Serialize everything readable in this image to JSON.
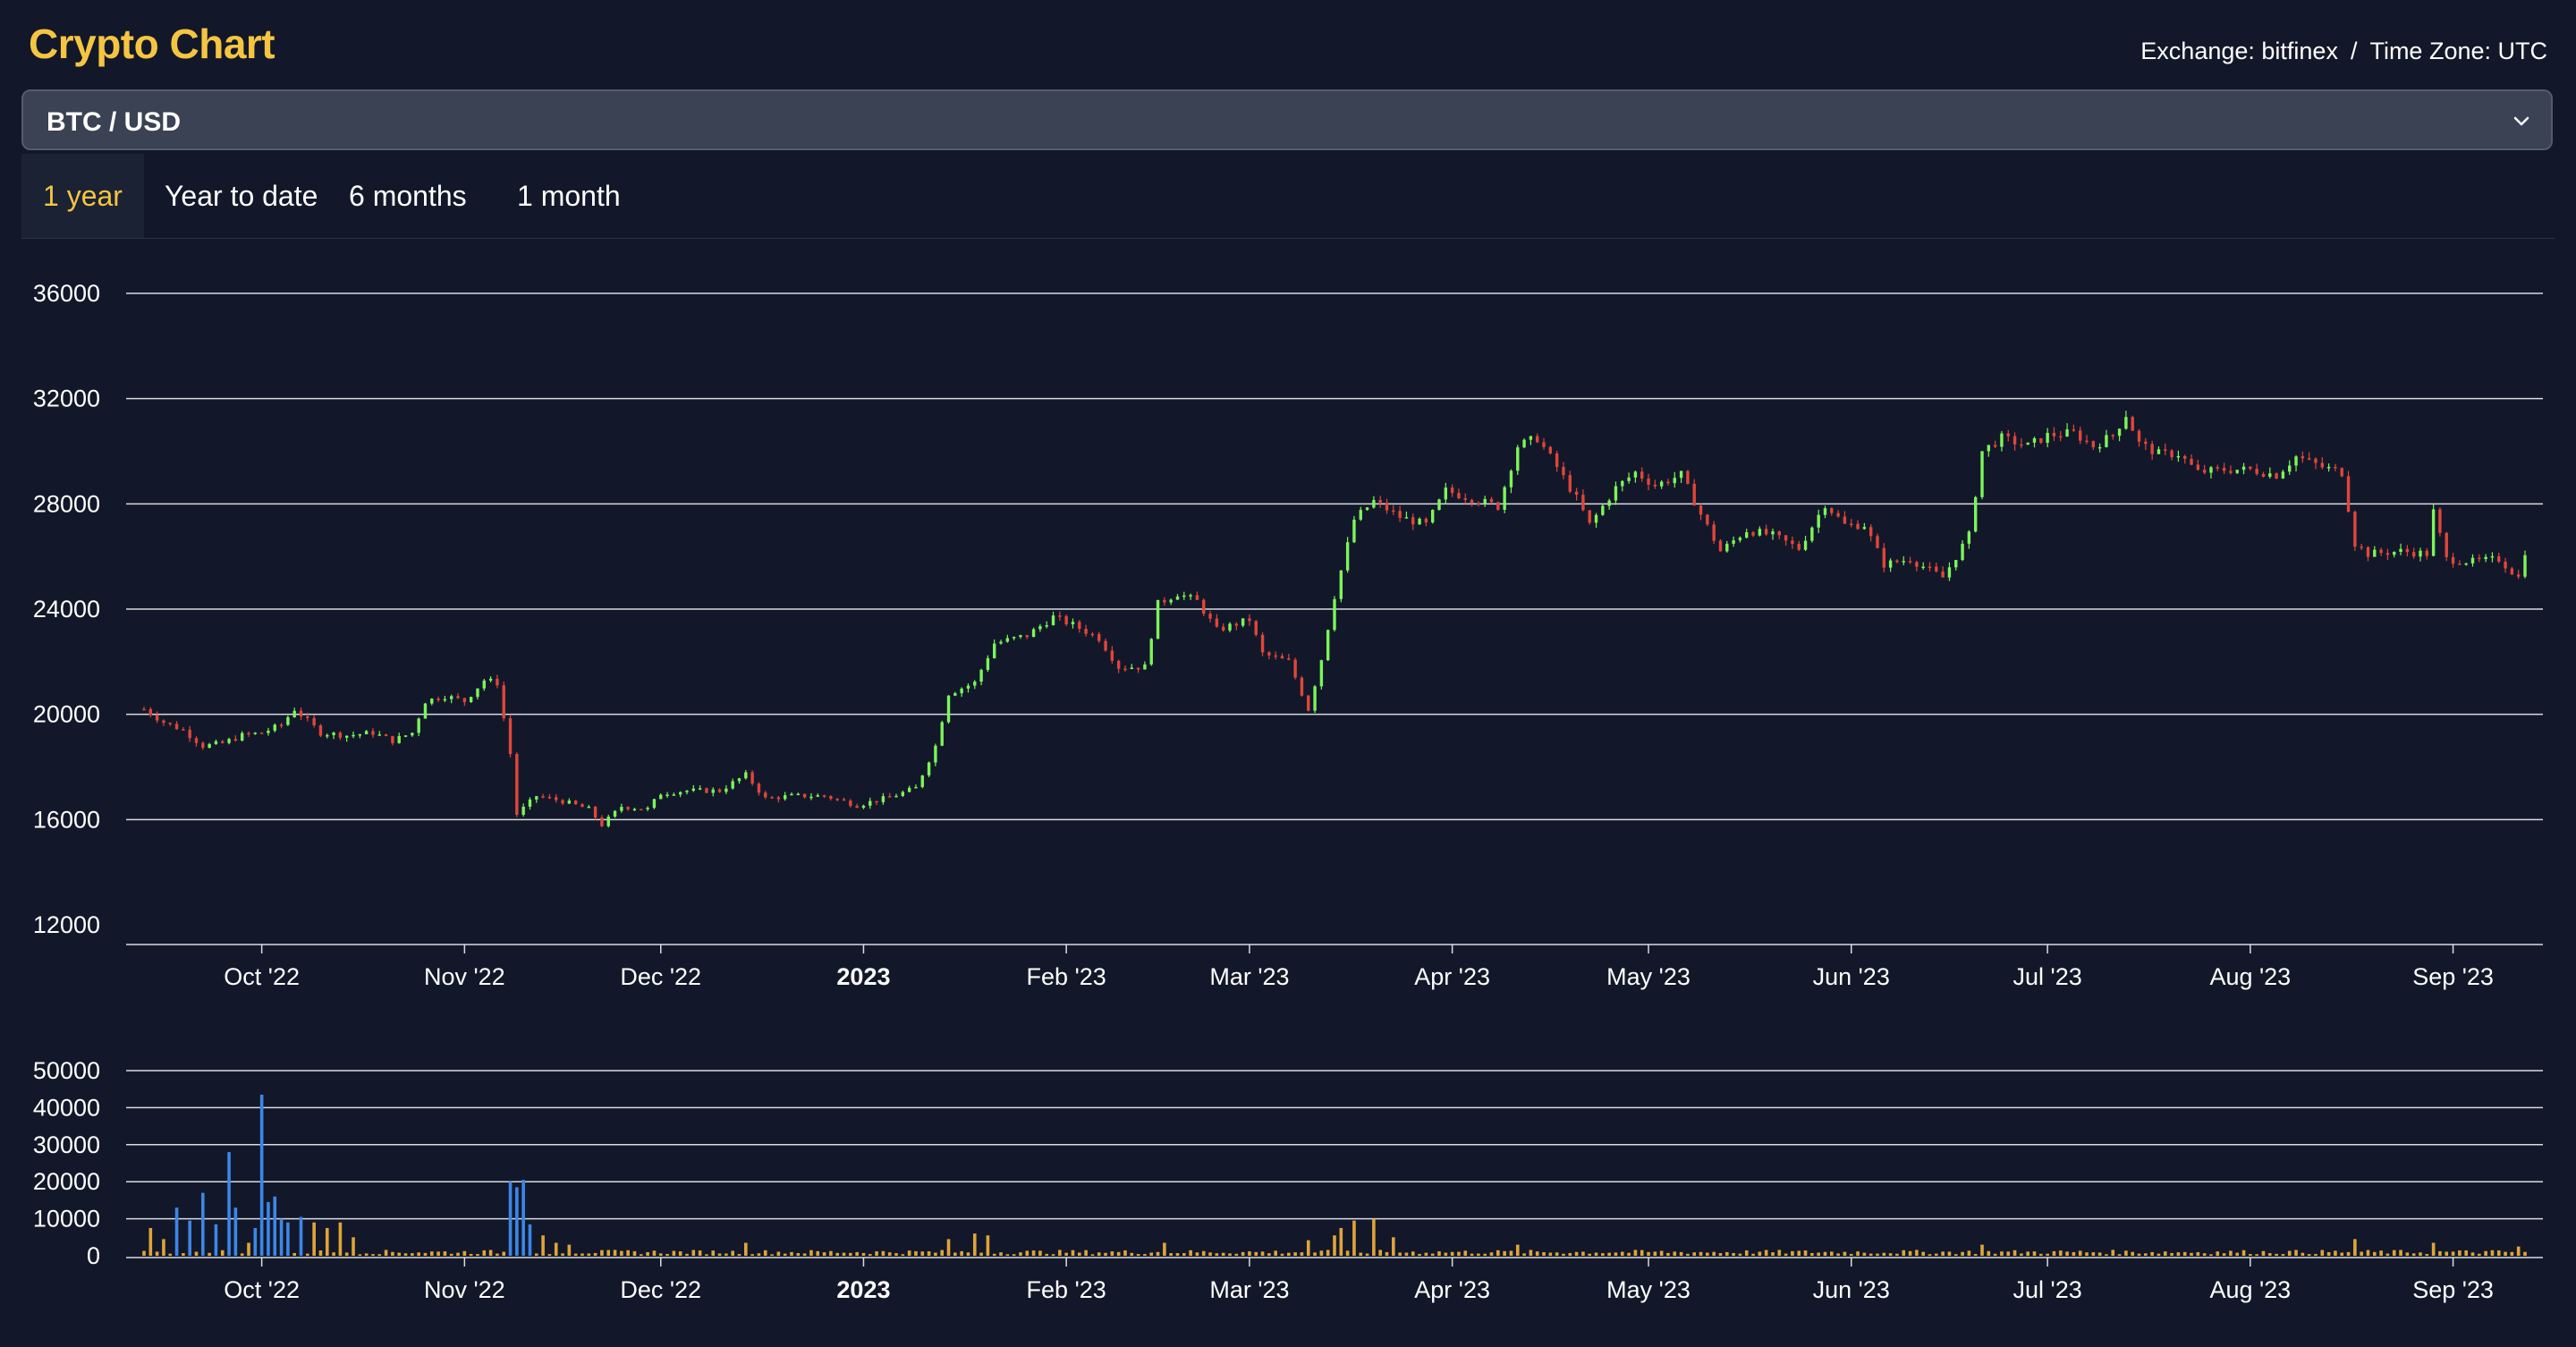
{
  "header": {
    "title": "Crypto Chart",
    "exchange_label": "Exchange: bitfinex",
    "timezone_label": "Time Zone: UTC",
    "separator": "/"
  },
  "pair_select": {
    "selected": "BTC / USD",
    "icon": "chevron-down-icon"
  },
  "tabs": [
    {
      "label": "1 year",
      "active": true
    },
    {
      "label": "Year to date",
      "active": false
    },
    {
      "label": "6 months",
      "active": false
    },
    {
      "label": "1 month",
      "active": false
    }
  ],
  "colors": {
    "background": "#121829",
    "title": "#f5c542",
    "up_candle": "#7cf55a",
    "down_candle": "#e0463a",
    "volume_default": "#e0a43a",
    "volume_highlight": "#3d86e8",
    "gridline": "#d8dbe2"
  },
  "chart_data": [
    {
      "type": "candlestick",
      "ylim": [
        12000,
        36000
      ],
      "y_ticks": [
        36000,
        32000,
        28000,
        24000,
        20000,
        16000,
        12000
      ],
      "x_ticks": [
        "Oct '22",
        "Nov '22",
        "Dec '22",
        "2023",
        "Feb '23",
        "Mar '23",
        "Apr '23",
        "May '23",
        "Jun '23",
        "Jul '23",
        "Aug '23",
        "Sep '23"
      ],
      "x_tick_bold": "2023",
      "date_range": [
        "2022-09-13",
        "2023-09-12"
      ],
      "close_series": [
        [
          "2022-09-13",
          20200
        ],
        [
          "2022-09-16",
          19700
        ],
        [
          "2022-09-19",
          19400
        ],
        [
          "2022-09-22",
          18800
        ],
        [
          "2022-09-25",
          18900
        ],
        [
          "2022-09-28",
          19200
        ],
        [
          "2022-10-01",
          19300
        ],
        [
          "2022-10-04",
          19600
        ],
        [
          "2022-10-06",
          20200
        ],
        [
          "2022-10-10",
          19300
        ],
        [
          "2022-10-14",
          19200
        ],
        [
          "2022-10-18",
          19300
        ],
        [
          "2022-10-21",
          19000
        ],
        [
          "2022-10-24",
          19300
        ],
        [
          "2022-10-26",
          20500
        ],
        [
          "2022-10-29",
          20700
        ],
        [
          "2022-11-01",
          20500
        ],
        [
          "2022-11-04",
          21300
        ],
        [
          "2022-11-06",
          21200
        ],
        [
          "2022-11-08",
          18500
        ],
        [
          "2022-11-09",
          16200
        ],
        [
          "2022-11-12",
          16900
        ],
        [
          "2022-11-16",
          16700
        ],
        [
          "2022-11-20",
          16400
        ],
        [
          "2022-11-22",
          15800
        ],
        [
          "2022-11-25",
          16500
        ],
        [
          "2022-11-29",
          16400
        ],
        [
          "2022-12-01",
          17000
        ],
        [
          "2022-12-05",
          17100
        ],
        [
          "2022-12-10",
          17100
        ],
        [
          "2022-12-14",
          17700
        ],
        [
          "2022-12-17",
          16800
        ],
        [
          "2022-12-21",
          16900
        ],
        [
          "2022-12-26",
          16900
        ],
        [
          "2022-12-31",
          16550
        ],
        [
          "2023-01-05",
          16850
        ],
        [
          "2023-01-09",
          17200
        ],
        [
          "2023-01-12",
          18800
        ],
        [
          "2023-01-14",
          20800
        ],
        [
          "2023-01-18",
          21200
        ],
        [
          "2023-01-21",
          22700
        ],
        [
          "2023-01-26",
          23000
        ],
        [
          "2023-01-30",
          23700
        ],
        [
          "2023-02-02",
          23400
        ],
        [
          "2023-02-06",
          22900
        ],
        [
          "2023-02-09",
          21800
        ],
        [
          "2023-02-13",
          21800
        ],
        [
          "2023-02-15",
          24200
        ],
        [
          "2023-02-18",
          24600
        ],
        [
          "2023-02-21",
          24300
        ],
        [
          "2023-02-24",
          23200
        ],
        [
          "2023-03-01",
          23600
        ],
        [
          "2023-03-03",
          22300
        ],
        [
          "2023-03-07",
          22000
        ],
        [
          "2023-03-10",
          20200
        ],
        [
          "2023-03-12",
          22100
        ],
        [
          "2023-03-14",
          24500
        ],
        [
          "2023-03-17",
          27400
        ],
        [
          "2023-03-20",
          28100
        ],
        [
          "2023-03-24",
          27500
        ],
        [
          "2023-03-28",
          27200
        ],
        [
          "2023-03-31",
          28500
        ],
        [
          "2023-04-04",
          28200
        ],
        [
          "2023-04-08",
          27900
        ],
        [
          "2023-04-11",
          30200
        ],
        [
          "2023-04-14",
          30500
        ],
        [
          "2023-04-17",
          29400
        ],
        [
          "2023-04-20",
          28200
        ],
        [
          "2023-04-22",
          27200
        ],
        [
          "2023-04-26",
          28600
        ],
        [
          "2023-04-29",
          29200
        ],
        [
          "2023-05-02",
          28700
        ],
        [
          "2023-05-06",
          29100
        ],
        [
          "2023-05-09",
          27600
        ],
        [
          "2023-05-12",
          26200
        ],
        [
          "2023-05-16",
          27000
        ],
        [
          "2023-05-20",
          26800
        ],
        [
          "2023-05-24",
          26300
        ],
        [
          "2023-05-28",
          28000
        ],
        [
          "2023-05-31",
          27200
        ],
        [
          "2023-06-03",
          27200
        ],
        [
          "2023-06-06",
          25700
        ],
        [
          "2023-06-10",
          25900
        ],
        [
          "2023-06-15",
          25200
        ],
        [
          "2023-06-19",
          26800
        ],
        [
          "2023-06-21",
          30000
        ],
        [
          "2023-06-24",
          30500
        ],
        [
          "2023-06-28",
          30200
        ],
        [
          "2023-07-01",
          30600
        ],
        [
          "2023-07-05",
          30700
        ],
        [
          "2023-07-08",
          30200
        ],
        [
          "2023-07-11",
          30600
        ],
        [
          "2023-07-13",
          31400
        ],
        [
          "2023-07-15",
          30300
        ],
        [
          "2023-07-18",
          29900
        ],
        [
          "2023-07-21",
          29900
        ],
        [
          "2023-07-24",
          29200
        ],
        [
          "2023-07-28",
          29300
        ],
        [
          "2023-08-01",
          29300
        ],
        [
          "2023-08-05",
          29100
        ],
        [
          "2023-08-08",
          29800
        ],
        [
          "2023-08-12",
          29400
        ],
        [
          "2023-08-15",
          29200
        ],
        [
          "2023-08-17",
          26500
        ],
        [
          "2023-08-19",
          26100
        ],
        [
          "2023-08-24",
          26200
        ],
        [
          "2023-08-28",
          26100
        ],
        [
          "2023-08-29",
          27700
        ],
        [
          "2023-08-31",
          25900
        ],
        [
          "2023-09-04",
          25800
        ],
        [
          "2023-09-08",
          25900
        ],
        [
          "2023-09-11",
          25200
        ],
        [
          "2023-09-12",
          26200
        ]
      ]
    },
    {
      "type": "bar",
      "series_name": "volume",
      "ylim": [
        0,
        50000
      ],
      "y_ticks": [
        50000,
        40000,
        30000,
        20000,
        10000,
        0
      ],
      "x_ticks": [
        "Oct '22",
        "Nov '22",
        "Dec '22",
        "2023",
        "Feb '23",
        "Mar '23",
        "Apr '23",
        "May '23",
        "Jun '23",
        "Jul '23",
        "Aug '23",
        "Sep '23"
      ],
      "x_tick_bold": "2023",
      "date_range": [
        "2022-09-13",
        "2023-09-12"
      ],
      "highlight_ranges": [
        [
          "2022-09-18",
          "2022-10-07"
        ],
        [
          "2022-11-08",
          "2022-11-11"
        ]
      ],
      "spikes": [
        [
          "2022-09-14",
          7500
        ],
        [
          "2022-09-16",
          4500
        ],
        [
          "2022-09-18",
          13000
        ],
        [
          "2022-09-20",
          9500
        ],
        [
          "2022-09-22",
          17000
        ],
        [
          "2022-09-24",
          8500
        ],
        [
          "2022-09-26",
          28000
        ],
        [
          "2022-09-27",
          13000
        ],
        [
          "2022-09-29",
          3500
        ],
        [
          "2022-09-30",
          7500
        ],
        [
          "2022-10-01",
          43500
        ],
        [
          "2022-10-02",
          14500
        ],
        [
          "2022-10-03",
          16000
        ],
        [
          "2022-10-04",
          10000
        ],
        [
          "2022-10-05",
          9000
        ],
        [
          "2022-10-07",
          10500
        ],
        [
          "2022-10-09",
          9000
        ],
        [
          "2022-10-11",
          7500
        ],
        [
          "2022-10-13",
          9000
        ],
        [
          "2022-10-15",
          5000
        ],
        [
          "2022-11-08",
          20000
        ],
        [
          "2022-11-09",
          18500
        ],
        [
          "2022-11-10",
          20500
        ],
        [
          "2022-11-11",
          8500
        ],
        [
          "2022-11-13",
          5500
        ],
        [
          "2022-11-15",
          3500
        ],
        [
          "2022-11-17",
          3000
        ],
        [
          "2022-12-14",
          3500
        ],
        [
          "2023-01-14",
          4500
        ],
        [
          "2023-01-18",
          6000
        ],
        [
          "2023-01-20",
          5500
        ],
        [
          "2023-02-16",
          3500
        ],
        [
          "2023-03-10",
          4200
        ],
        [
          "2023-03-14",
          5500
        ],
        [
          "2023-03-15",
          7500
        ],
        [
          "2023-03-17",
          9500
        ],
        [
          "2023-03-20",
          10000
        ],
        [
          "2023-03-23",
          5000
        ],
        [
          "2023-04-11",
          3000
        ],
        [
          "2023-06-21",
          3000
        ],
        [
          "2023-08-17",
          4500
        ],
        [
          "2023-08-29",
          3500
        ],
        [
          "2023-09-11",
          2500
        ]
      ],
      "baseline": 1000
    }
  ]
}
